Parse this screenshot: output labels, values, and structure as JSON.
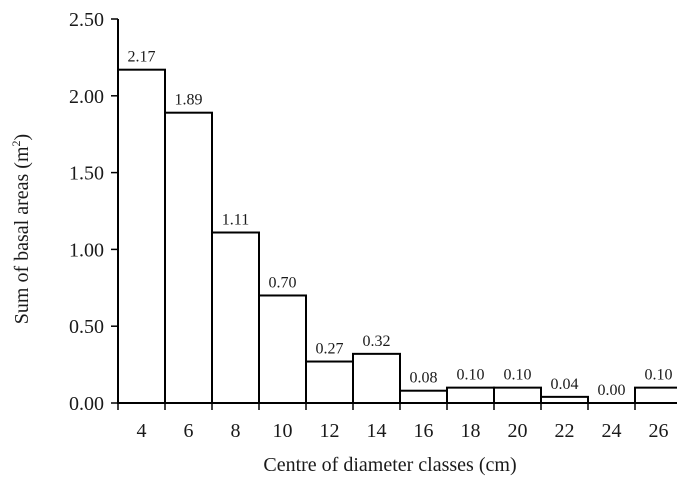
{
  "chart_data": {
    "type": "bar",
    "categories": [
      "4",
      "6",
      "8",
      "10",
      "12",
      "14",
      "16",
      "18",
      "20",
      "22",
      "24",
      "26"
    ],
    "values": [
      2.17,
      1.89,
      1.11,
      0.7,
      0.27,
      0.32,
      0.08,
      0.1,
      0.1,
      0.04,
      0.0,
      0.1
    ],
    "data_labels": [
      "2.17",
      "1.89",
      "1.11",
      "0.70",
      "0.27",
      "0.32",
      "0.08",
      "0.10",
      "0.10",
      "0.04",
      "0.00",
      "0.10"
    ],
    "title": "",
    "xlabel": "Centre of diameter classes (cm)",
    "ylabel_main": "Sum of basal areas (m",
    "ylabel_sup": "2",
    "ylabel_close": ")",
    "ylim": [
      0,
      2.5
    ],
    "yticks": [
      0.0,
      0.5,
      1.0,
      1.5,
      2.0,
      2.5
    ],
    "ytick_labels": [
      "0.00",
      "0.50",
      "1.00",
      "1.50",
      "2.00",
      "2.50"
    ],
    "grid": false,
    "legend": "none",
    "bar_fill": "#ffffff",
    "bar_stroke": "#000000"
  }
}
